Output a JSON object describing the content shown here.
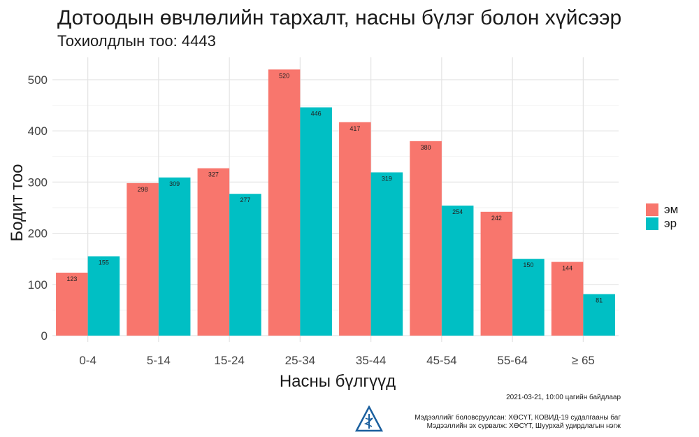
{
  "title": "Дотоодын өвчлөлийн тархалт, насны бүлэг болон хүйсээр",
  "subtitle": "Тохиолдлын тоо: 4443",
  "chart_data": {
    "type": "bar",
    "title": "Дотоодын өвчлөлийн тархалт, насны бүлэг болон хүйсээр",
    "subtitle": "Тохиолдлын тоо: 4443",
    "xlabel": "Насны бүлгүүд",
    "ylabel": "Бодит тоо",
    "categories": [
      "0-4",
      "5-14",
      "15-24",
      "25-34",
      "35-44",
      "45-54",
      "55-64",
      "≥ 65"
    ],
    "series": [
      {
        "name": "эм",
        "color": "#F8766D",
        "values": [
          123,
          298,
          327,
          520,
          417,
          380,
          242,
          144
        ]
      },
      {
        "name": "эр",
        "color": "#00BFC4",
        "values": [
          155,
          309,
          277,
          446,
          319,
          254,
          150,
          81
        ]
      }
    ],
    "yticks": [
      0,
      100,
      200,
      300,
      400,
      500
    ],
    "ylim": [
      0,
      540
    ],
    "grid": true,
    "legend_position": "right"
  },
  "footer": {
    "date_note": "2021-03-21, 10:00 цагийн байдлаар",
    "prepared_by": "Мэдээллийг боловсруулсан: ХӨСҮТ, КОВИД-19 судалгааны баг",
    "source": "Мэдээллийн эх сурвалж: ХӨСҮТ, Шуурхай удирдлагын нэгж"
  },
  "logo": {
    "icon": "medical-triangle-logo",
    "color": "#1a5f9e"
  }
}
